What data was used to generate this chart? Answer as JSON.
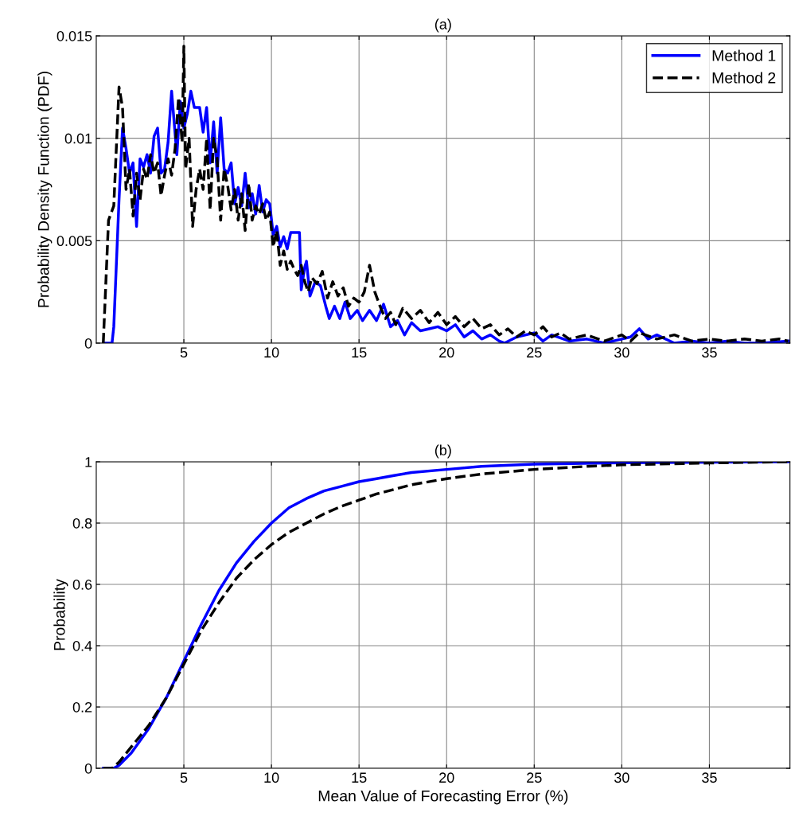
{
  "chart_data": [
    {
      "type": "line",
      "title": "(a)",
      "ylabel": "Probability Density Function (PDF)",
      "xlim": [
        0,
        39.6
      ],
      "xticks": [
        5,
        10,
        15,
        20,
        25,
        30,
        35
      ],
      "ylim": [
        0,
        0.015
      ],
      "yticks": [
        0,
        0.005,
        0.01,
        0.015
      ],
      "grid": true,
      "legend": "top right",
      "series": [
        {
          "name": "Method 1",
          "color": "#0000ff",
          "line_style": "solid",
          "x": [
            0.4,
            0.9,
            1.0,
            1.3,
            1.5,
            1.7,
            1.9,
            2.1,
            2.3,
            2.5,
            2.7,
            2.9,
            3.1,
            3.3,
            3.5,
            3.7,
            3.9,
            4.1,
            4.3,
            4.6,
            4.8,
            5.0,
            5.2,
            5.4,
            5.6,
            5.9,
            6.1,
            6.3,
            6.5,
            6.7,
            6.9,
            7.1,
            7.3,
            7.5,
            7.7,
            7.9,
            8.1,
            8.3,
            8.5,
            8.7,
            8.9,
            9.1,
            9.3,
            9.5,
            9.7,
            9.9,
            10.1,
            10.3,
            10.5,
            10.7,
            10.9,
            11.1,
            11.6,
            11.7,
            11.9,
            12.0,
            12.2,
            12.5,
            12.8,
            13.1,
            13.3,
            13.6,
            13.9,
            14.2,
            14.5,
            14.9,
            15.2,
            15.6,
            16.0,
            16.4,
            16.8,
            17.2,
            17.6,
            18,
            18.5,
            19,
            19.5,
            20,
            20.5,
            21,
            21.5,
            22,
            22.5,
            23,
            23.3,
            24,
            25,
            25.5,
            26,
            27,
            28,
            29,
            30,
            30.5,
            31,
            31.5,
            32,
            33,
            34,
            35,
            36,
            37,
            38,
            39.5
          ],
          "values": [
            0,
            0,
            0.0008,
            0.007,
            0.0105,
            0.0095,
            0.0083,
            0.0088,
            0.0057,
            0.009,
            0.0086,
            0.0092,
            0.0083,
            0.0101,
            0.0105,
            0.0083,
            0.0085,
            0.0098,
            0.0123,
            0.0092,
            0.0118,
            0.0105,
            0.0112,
            0.0123,
            0.0115,
            0.0115,
            0.0103,
            0.0115,
            0.0088,
            0.0108,
            0.0083,
            0.011,
            0.0085,
            0.0083,
            0.0088,
            0.0068,
            0.0076,
            0.0067,
            0.0083,
            0.0066,
            0.0073,
            0.0063,
            0.0077,
            0.0064,
            0.007,
            0.0068,
            0.0053,
            0.0057,
            0.0047,
            0.0052,
            0.0046,
            0.0054,
            0.0054,
            0.0026,
            0.0037,
            0.004,
            0.0023,
            0.003,
            0.0028,
            0.0018,
            0.0012,
            0.0018,
            0.0012,
            0.002,
            0.0012,
            0.0016,
            0.0011,
            0.0016,
            0.0011,
            0.0019,
            0.0008,
            0.0011,
            0.0004,
            0.001,
            0.0006,
            0.0007,
            0.0008,
            0.0006,
            0.0009,
            0.0003,
            0.0006,
            0.0002,
            0.0004,
            0.0001,
            0,
            0.0003,
            0.0005,
            0.0001,
            0.0004,
            0.0001,
            0.0002,
            0,
            0.0002,
            0.0003,
            0.0007,
            0.0002,
            0.0004,
            0,
            0.0001,
            0,
            0.0001,
            0,
            0,
            0.0001
          ]
        },
        {
          "name": "Method 2",
          "color": "#000000",
          "line_style": "dashed",
          "x": [
            0.4,
            0.7,
            1.0,
            1.3,
            1.5,
            1.7,
            1.9,
            2.1,
            2.3,
            2.5,
            2.7,
            2.9,
            3.1,
            3.3,
            3.5,
            3.7,
            3.9,
            4.1,
            4.3,
            4.5,
            4.7,
            4.9,
            5.0,
            5.1,
            5.3,
            5.5,
            5.7,
            5.9,
            6.1,
            6.3,
            6.5,
            6.7,
            6.9,
            7.1,
            7.3,
            7.5,
            7.7,
            7.9,
            8.1,
            8.3,
            8.5,
            8.7,
            8.9,
            9.1,
            9.3,
            9.5,
            9.7,
            9.9,
            10.1,
            10.3,
            10.5,
            10.7,
            10.9,
            11.1,
            11.3,
            11.5,
            11.7,
            11.9,
            12.1,
            12.3,
            12.6,
            12.9,
            13.2,
            13.5,
            13.8,
            14.1,
            14.4,
            14.7,
            15.0,
            15.3,
            15.6,
            15.9,
            16.2,
            16.5,
            16.8,
            17.1,
            17.5,
            18,
            18.5,
            19,
            19.5,
            20,
            20.5,
            21,
            21.5,
            22,
            22.5,
            23,
            23.5,
            24,
            24.5,
            25,
            25.5,
            26,
            26.5,
            27,
            28,
            29,
            30,
            30.5,
            31,
            32,
            33,
            34,
            35,
            36,
            37,
            38,
            39,
            39.5
          ],
          "values": [
            0,
            0.006,
            0.0067,
            0.0125,
            0.0115,
            0.0075,
            0.0085,
            0.0062,
            0.0083,
            0.007,
            0.0085,
            0.008,
            0.0092,
            0.0083,
            0.0088,
            0.0072,
            0.0082,
            0.009,
            0.0082,
            0.0095,
            0.012,
            0.0098,
            0.0145,
            0.0085,
            0.01,
            0.0057,
            0.0075,
            0.0085,
            0.0075,
            0.01,
            0.0065,
            0.01,
            0.009,
            0.006,
            0.0085,
            0.0077,
            0.0065,
            0.0075,
            0.006,
            0.0073,
            0.0055,
            0.0078,
            0.006,
            0.0067,
            0.0063,
            0.0068,
            0.006,
            0.0064,
            0.0047,
            0.0055,
            0.0038,
            0.0045,
            0.0036,
            0.004,
            0.0036,
            0.0033,
            0.0038,
            0.003,
            0.0025,
            0.0032,
            0.0029,
            0.0035,
            0.0022,
            0.003,
            0.0023,
            0.0027,
            0.0018,
            0.0022,
            0.002,
            0.0025,
            0.0038,
            0.0025,
            0.0018,
            0.0012,
            0.0015,
            0.0009,
            0.0017,
            0.0012,
            0.0016,
            0.001,
            0.0015,
            0.0009,
            0.0013,
            0.0008,
            0.0012,
            0.0007,
            0.0009,
            0.0004,
            0.0007,
            0.0003,
            0.0006,
            0.0004,
            0.0008,
            0.0003,
            0.0005,
            0.0002,
            0.0004,
            0.0001,
            0.0004,
            0.0001,
            0.0005,
            0.0002,
            0.0004,
            0.0001,
            0.0002,
            0.0001,
            0.0002,
            0.0001,
            0.0002,
            0.0001
          ]
        }
      ]
    },
    {
      "type": "line",
      "title": "(b)",
      "xlabel": "Mean Value of Forecasting Error (%)",
      "ylabel": "Probability",
      "xlim": [
        0,
        39.6
      ],
      "xticks": [
        5,
        10,
        15,
        20,
        25,
        30,
        35
      ],
      "ylim": [
        0,
        1
      ],
      "yticks": [
        0,
        0.2,
        0.4,
        0.6,
        0.8,
        1
      ],
      "grid": true,
      "series": [
        {
          "color": "#0000ff",
          "line_style": "solid",
          "x": [
            0.4,
            1.0,
            1.3,
            2,
            3,
            4,
            5,
            6,
            7,
            8,
            9,
            10,
            11,
            12,
            13,
            14,
            15,
            16,
            17,
            18,
            20,
            22,
            25,
            30,
            39.5
          ],
          "values": [
            0,
            0,
            0.01,
            0.05,
            0.13,
            0.23,
            0.35,
            0.47,
            0.58,
            0.67,
            0.74,
            0.8,
            0.85,
            0.88,
            0.905,
            0.92,
            0.935,
            0.945,
            0.955,
            0.965,
            0.975,
            0.985,
            0.992,
            0.997,
            1
          ]
        },
        {
          "color": "#000000",
          "line_style": "dashed",
          "x": [
            0.4,
            0.9,
            1.3,
            2,
            3,
            4,
            5,
            6,
            7,
            8,
            9,
            10,
            11,
            12,
            13,
            14,
            15,
            16,
            17,
            18,
            20,
            22,
            25,
            28,
            30,
            35,
            39.5
          ],
          "values": [
            0,
            0,
            0.02,
            0.07,
            0.14,
            0.23,
            0.34,
            0.45,
            0.54,
            0.62,
            0.68,
            0.73,
            0.77,
            0.8,
            0.83,
            0.855,
            0.875,
            0.895,
            0.91,
            0.925,
            0.945,
            0.96,
            0.975,
            0.985,
            0.99,
            0.996,
            1
          ]
        }
      ]
    }
  ]
}
